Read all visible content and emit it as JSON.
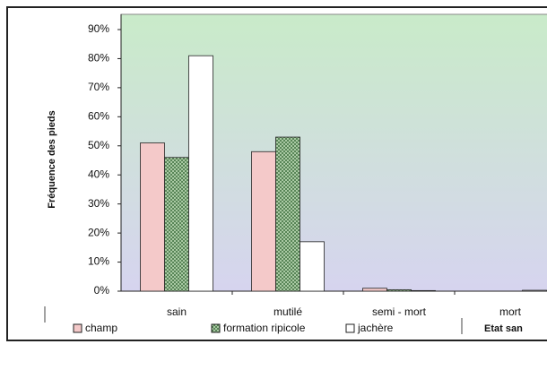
{
  "chart_data": {
    "type": "bar",
    "y_label": "Fréquence des pieds",
    "x_label": "Etat san",
    "categories": [
      "sain",
      "mutilé",
      "semi - mort",
      "mort"
    ],
    "series": [
      {
        "name": "champ",
        "color": "#f4c9c9",
        "values": [
          51,
          48,
          1,
          0
        ]
      },
      {
        "name": "formation ripicole",
        "color": "#3f6f3f",
        "pattern": "dots",
        "values": [
          46,
          53,
          0.5,
          0
        ]
      },
      {
        "name": "jachère",
        "color": "#ffffff",
        "values": [
          81,
          17,
          0.2,
          0.3
        ]
      }
    ],
    "ylim": [
      0,
      90
    ],
    "yticks": [
      {
        "value": 0,
        "label": "0%"
      },
      {
        "value": 10,
        "label": "10%"
      },
      {
        "value": 20,
        "label": "20%"
      },
      {
        "value": 30,
        "label": "30%"
      },
      {
        "value": 40,
        "label": "40%"
      },
      {
        "value": 50,
        "label": "50%"
      },
      {
        "value": 60,
        "label": "60%"
      },
      {
        "value": 70,
        "label": "70%"
      },
      {
        "value": 80,
        "label": "80%"
      },
      {
        "value": 90,
        "label": "90%"
      }
    ],
    "grid": false
  }
}
